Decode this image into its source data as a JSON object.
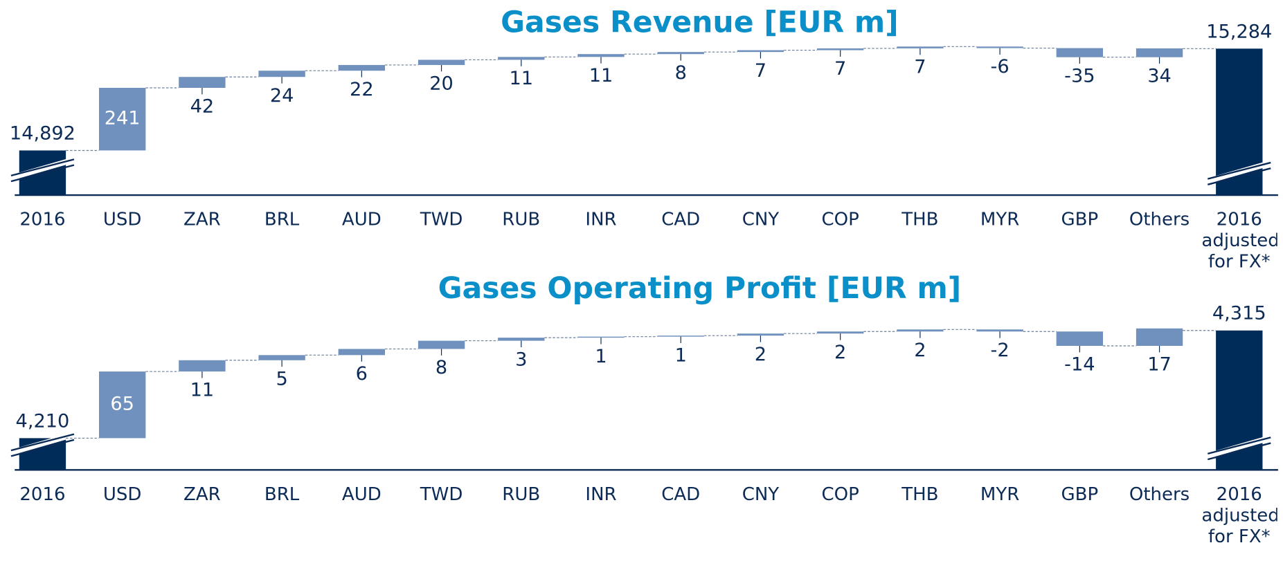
{
  "chart_data": [
    {
      "type": "waterfall",
      "title": "Gases Revenue [EUR m]",
      "categories": [
        "2016",
        "USD",
        "ZAR",
        "BRL",
        "AUD",
        "TWD",
        "RUB",
        "INR",
        "CAD",
        "CNY",
        "COP",
        "THB",
        "MYR",
        "GBP",
        "Others",
        "2016 adjusted for FX*"
      ],
      "values": [
        14892,
        241,
        42,
        24,
        22,
        20,
        11,
        11,
        8,
        7,
        7,
        7,
        -6,
        -35,
        34,
        15284
      ],
      "value_labels": [
        "14,892",
        "241",
        "42",
        "24",
        "22",
        "20",
        "11",
        "11",
        "8",
        "7",
        "7",
        "7",
        "-6",
        "-35",
        "34",
        "15,284"
      ],
      "ylim": [
        14720,
        15346
      ],
      "total_color": "#002c5a",
      "delta_color": "#7090bd",
      "title_color": "#0a8fc9"
    },
    {
      "type": "waterfall",
      "title": "Gases Operating Profit [EUR m]",
      "categories": [
        "2016",
        "USD",
        "ZAR",
        "BRL",
        "AUD",
        "TWD",
        "RUB",
        "INR",
        "CAD",
        "CNY",
        "COP",
        "THB",
        "MYR",
        "GBP",
        "Others",
        "2016 adjusted for FX*"
      ],
      "values": [
        4210,
        65,
        11,
        5,
        6,
        8,
        3,
        1,
        1,
        2,
        2,
        2,
        -2,
        -14,
        17,
        4315
      ],
      "value_labels": [
        "4,210",
        "65",
        "11",
        "5",
        "6",
        "8",
        "3",
        "1",
        "1",
        "2",
        "2",
        "2",
        "-2",
        "-14",
        "17",
        "4,315"
      ],
      "ylim": [
        4179,
        4336
      ],
      "total_color": "#002c5a",
      "delta_color": "#7090bd",
      "title_color": "#0a8fc9"
    }
  ]
}
